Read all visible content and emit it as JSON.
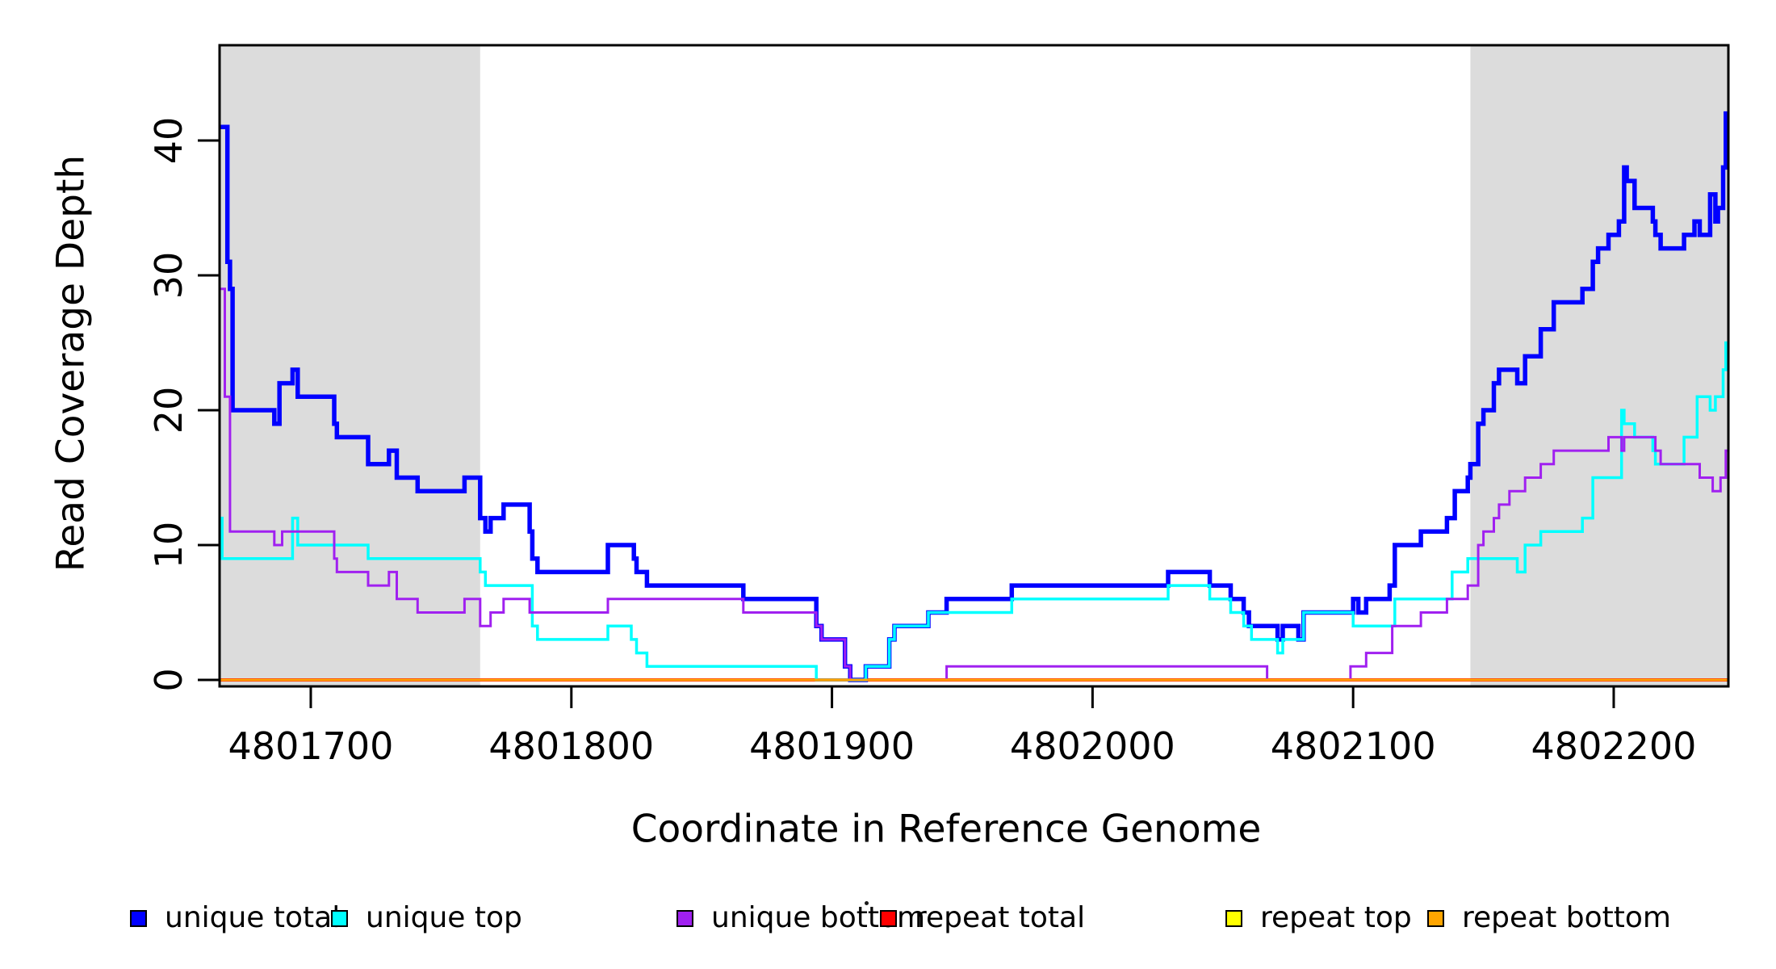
{
  "chart_data": {
    "type": "line",
    "subtype": "step",
    "title": "",
    "xlabel": "Coordinate in Reference Genome",
    "ylabel": "Read Coverage Depth",
    "xlim": [
      4801665,
      4802244
    ],
    "ylim": [
      0,
      47
    ],
    "grid": false,
    "legend_position": "bottom",
    "x_ticks": [
      4801700,
      4801800,
      4801900,
      4802000,
      4802100,
      4802200
    ],
    "x_tick_labels": [
      "4801700",
      "4801800",
      "4801900",
      "4802000",
      "4802100",
      "4802200"
    ],
    "y_ticks": [
      0,
      10,
      20,
      30,
      40
    ],
    "y_tick_labels": [
      "0",
      "10",
      "20",
      "30",
      "40"
    ],
    "shade_color": "#dcdcdc",
    "shaded_regions": [
      {
        "x0": 4801665,
        "x1": 4801765
      },
      {
        "x0": 4802145,
        "x1": 4802244
      }
    ],
    "series": [
      {
        "name": "repeat total",
        "color": "#ff0000",
        "width": 4,
        "points": [
          [
            4801665,
            0
          ]
        ]
      },
      {
        "name": "repeat top",
        "color": "#ffff00",
        "width": 3,
        "points": [
          [
            4801665,
            0
          ]
        ]
      },
      {
        "name": "unique total",
        "color": "#0000ff",
        "width": 5.5,
        "points": [
          [
            4801665,
            41
          ],
          [
            4801668,
            31
          ],
          [
            4801669,
            29
          ],
          [
            4801670,
            20
          ],
          [
            4801686,
            19
          ],
          [
            4801688,
            22
          ],
          [
            4801693,
            23
          ],
          [
            4801695,
            21
          ],
          [
            4801709,
            19
          ],
          [
            4801710,
            18
          ],
          [
            4801722,
            16
          ],
          [
            4801730,
            17
          ],
          [
            4801733,
            15
          ],
          [
            4801741,
            14
          ],
          [
            4801759,
            15
          ],
          [
            4801765,
            12
          ],
          [
            4801767,
            11
          ],
          [
            4801769,
            12
          ],
          [
            4801774,
            13
          ],
          [
            4801784,
            11
          ],
          [
            4801785,
            9
          ],
          [
            4801787,
            8
          ],
          [
            4801814,
            10
          ],
          [
            4801824,
            9
          ],
          [
            4801825,
            8
          ],
          [
            4801829,
            7
          ],
          [
            4801866,
            6
          ],
          [
            4801894,
            4
          ],
          [
            4801896,
            3
          ],
          [
            4801905,
            1
          ],
          [
            4801907,
            0
          ],
          [
            4801913,
            1
          ],
          [
            4801922,
            3
          ],
          [
            4801924,
            4
          ],
          [
            4801937,
            5
          ],
          [
            4801944,
            6
          ],
          [
            4801969,
            7
          ],
          [
            4802029,
            8
          ],
          [
            4802045,
            7
          ],
          [
            4802053,
            6
          ],
          [
            4802058,
            5
          ],
          [
            4802060,
            4
          ],
          [
            4802071,
            3
          ],
          [
            4802073,
            4
          ],
          [
            4802079,
            3
          ],
          [
            4802081,
            5
          ],
          [
            4802100,
            6
          ],
          [
            4802102,
            5
          ],
          [
            4802105,
            6
          ],
          [
            4802114,
            7
          ],
          [
            4802116,
            10
          ],
          [
            4802126,
            11
          ],
          [
            4802136,
            12
          ],
          [
            4802139,
            14
          ],
          [
            4802144,
            15
          ],
          [
            4802145,
            16
          ],
          [
            4802148,
            19
          ],
          [
            4802150,
            20
          ],
          [
            4802154,
            22
          ],
          [
            4802156,
            23
          ],
          [
            4802163,
            22
          ],
          [
            4802166,
            24
          ],
          [
            4802172,
            26
          ],
          [
            4802177,
            28
          ],
          [
            4802188,
            29
          ],
          [
            4802192,
            31
          ],
          [
            4802194,
            32
          ],
          [
            4802198,
            33
          ],
          [
            4802202,
            34
          ],
          [
            4802204,
            38
          ],
          [
            4802205,
            37
          ],
          [
            4802208,
            35
          ],
          [
            4802215,
            34
          ],
          [
            4802216,
            33
          ],
          [
            4802218,
            32
          ],
          [
            4802227,
            33
          ],
          [
            4802231,
            34
          ],
          [
            4802233,
            33
          ],
          [
            4802237,
            36
          ],
          [
            4802239,
            34
          ],
          [
            4802240,
            35
          ],
          [
            4802242,
            38
          ],
          [
            4802243,
            42
          ]
        ]
      },
      {
        "name": "unique top",
        "color": "#00ffff",
        "width": 3.5,
        "points": [
          [
            4801665,
            12
          ],
          [
            4801666,
            9
          ],
          [
            4801693,
            12
          ],
          [
            4801695,
            10
          ],
          [
            4801722,
            9
          ],
          [
            4801765,
            8
          ],
          [
            4801767,
            7
          ],
          [
            4801785,
            4
          ],
          [
            4801787,
            3
          ],
          [
            4801814,
            4
          ],
          [
            4801823,
            3
          ],
          [
            4801825,
            2
          ],
          [
            4801829,
            1
          ],
          [
            4801894,
            0
          ],
          [
            4801913,
            1
          ],
          [
            4801922,
            3
          ],
          [
            4801924,
            4
          ],
          [
            4801937,
            5
          ],
          [
            4801969,
            6
          ],
          [
            4802029,
            7
          ],
          [
            4802045,
            6
          ],
          [
            4802053,
            5
          ],
          [
            4802058,
            4
          ],
          [
            4802061,
            3
          ],
          [
            4802071,
            2
          ],
          [
            4802073,
            3
          ],
          [
            4802081,
            5
          ],
          [
            4802100,
            4
          ],
          [
            4802116,
            6
          ],
          [
            4802138,
            8
          ],
          [
            4802144,
            9
          ],
          [
            4802163,
            8
          ],
          [
            4802166,
            10
          ],
          [
            4802172,
            11
          ],
          [
            4802188,
            12
          ],
          [
            4802192,
            15
          ],
          [
            4802203,
            20
          ],
          [
            4802204,
            19
          ],
          [
            4802208,
            18
          ],
          [
            4802215,
            17
          ],
          [
            4802216,
            16
          ],
          [
            4802227,
            18
          ],
          [
            4802232,
            21
          ],
          [
            4802237,
            20
          ],
          [
            4802239,
            21
          ],
          [
            4802242,
            23
          ],
          [
            4802243,
            25
          ]
        ]
      },
      {
        "name": "unique bottom",
        "color": "#a020f0",
        "width": 3,
        "points": [
          [
            4801665,
            29
          ],
          [
            4801667,
            21
          ],
          [
            4801669,
            11
          ],
          [
            4801686,
            10
          ],
          [
            4801689,
            11
          ],
          [
            4801709,
            9
          ],
          [
            4801710,
            8
          ],
          [
            4801722,
            7
          ],
          [
            4801730,
            8
          ],
          [
            4801733,
            6
          ],
          [
            4801741,
            5
          ],
          [
            4801759,
            6
          ],
          [
            4801765,
            4
          ],
          [
            4801769,
            5
          ],
          [
            4801774,
            6
          ],
          [
            4801784,
            5
          ],
          [
            4801814,
            6
          ],
          [
            4801866,
            5
          ],
          [
            4801894,
            4
          ],
          [
            4801896,
            3
          ],
          [
            4801905,
            1
          ],
          [
            4801907,
            0
          ],
          [
            4801944,
            1
          ],
          [
            4802067,
            0
          ],
          [
            4802099,
            1
          ],
          [
            4802105,
            2
          ],
          [
            4802115,
            4
          ],
          [
            4802126,
            5
          ],
          [
            4802136,
            6
          ],
          [
            4802144,
            7
          ],
          [
            4802148,
            10
          ],
          [
            4802150,
            11
          ],
          [
            4802154,
            12
          ],
          [
            4802156,
            13
          ],
          [
            4802160,
            14
          ],
          [
            4802166,
            15
          ],
          [
            4802172,
            16
          ],
          [
            4802177,
            17
          ],
          [
            4802198,
            18
          ],
          [
            4802203,
            17
          ],
          [
            4802204,
            18
          ],
          [
            4802216,
            17
          ],
          [
            4802218,
            16
          ],
          [
            4802233,
            15
          ],
          [
            4802238,
            14
          ],
          [
            4802241,
            15
          ],
          [
            4802243,
            17
          ]
        ]
      },
      {
        "name": "repeat bottom",
        "color": "#ffa500",
        "width": 3,
        "points": [
          [
            4801665,
            0
          ]
        ]
      }
    ],
    "legend": [
      {
        "label": "unique total",
        "color": "#0000ff"
      },
      {
        "label": "unique top",
        "color": "#00ffff"
      },
      {
        "label": "unique bottom",
        "color": "#a020f0"
      },
      {
        "label": "repeat total",
        "color": "#ff0000"
      },
      {
        "label": "repeat top",
        "color": "#ffff00"
      },
      {
        "label": "repeat bottom",
        "color": "#ffa500"
      }
    ]
  }
}
